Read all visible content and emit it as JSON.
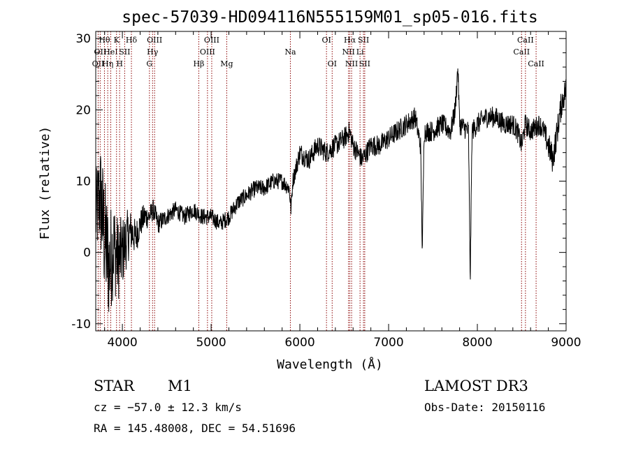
{
  "chart_data": {
    "type": "line",
    "title": "spec-57039-HD094116N555159M01_sp05-016.fits",
    "xlabel": "Wavelength (Å)",
    "ylabel": "Flux (relative)",
    "xlim": [
      3700,
      9000
    ],
    "ylim": [
      -11,
      31
    ],
    "xticks": [
      4000,
      5000,
      6000,
      7000,
      8000,
      9000
    ],
    "yticks": [
      -10,
      0,
      10,
      20,
      30
    ],
    "grid": false,
    "line_color": "#000000",
    "marker_color": "#8b0000",
    "spectrum_anchors": {
      "x": [
        3700,
        3750,
        3800,
        3850,
        3900,
        3950,
        4000,
        4050,
        4100,
        4150,
        4200,
        4250,
        4300,
        4350,
        4400,
        4500,
        4600,
        4700,
        4800,
        4900,
        5000,
        5100,
        5200,
        5300,
        5400,
        5500,
        5600,
        5700,
        5800,
        5880,
        5900,
        5920,
        6000,
        6100,
        6200,
        6300,
        6400,
        6500,
        6560,
        6600,
        6700,
        6800,
        6900,
        7000,
        7100,
        7200,
        7300,
        7360,
        7380,
        7400,
        7500,
        7600,
        7700,
        7750,
        7780,
        7800,
        7900,
        7920,
        7940,
        8000,
        8100,
        8200,
        8300,
        8400,
        8450,
        8500,
        8540,
        8600,
        8700,
        8750,
        8800,
        8850,
        8900,
        8950,
        9000
      ],
      "y": [
        5,
        8,
        2,
        -2,
        1,
        -1,
        0,
        2,
        3,
        2,
        4,
        5,
        5,
        6,
        4,
        5,
        6,
        5,
        6,
        5,
        5,
        4,
        5,
        7,
        8,
        9,
        9,
        10,
        10,
        9,
        6,
        10,
        14,
        13,
        15,
        14,
        15,
        16,
        17,
        15,
        13,
        15,
        15,
        16,
        17,
        18,
        19,
        15,
        0,
        17,
        17,
        18,
        17,
        20,
        26,
        18,
        17,
        -4,
        17,
        18,
        19,
        19,
        18,
        18,
        17,
        15,
        18,
        17,
        18,
        17,
        15,
        13,
        17,
        21,
        23
      ],
      "noise_amplitude": [
        6,
        8,
        9,
        8,
        7,
        6,
        5,
        4,
        3,
        2.5,
        2,
        2,
        1.5,
        1.5,
        1.5,
        1.2,
        1.2,
        1.2,
        1.2,
        1.2,
        1.2,
        1.2,
        1.2,
        1.2,
        1.2,
        1.2,
        1.2,
        1.2,
        1.2,
        1.2,
        1.2,
        1.2,
        1.5,
        1.5,
        1.5,
        1.5,
        1.5,
        1.5,
        1.5,
        1.5,
        1.5,
        1.5,
        1.5,
        1.5,
        1.5,
        1.5,
        1.5,
        1.5,
        1.5,
        1.5,
        1.5,
        1.5,
        1.5,
        1.5,
        1.5,
        1.5,
        1.5,
        1.5,
        1.5,
        1.5,
        1.5,
        1.5,
        1.5,
        1.5,
        1.5,
        1.5,
        1.5,
        1.5,
        1.5,
        1.5,
        2,
        2,
        2,
        2,
        2
      ]
    },
    "line_markers": [
      {
        "wave": 3727,
        "label": "OII",
        "row": 2
      },
      {
        "wave": 3750,
        "label": "OII",
        "row": 1
      },
      {
        "wave": 3798,
        "label": "Hθ",
        "row": 0
      },
      {
        "wave": 3835,
        "label": "Hη",
        "row": 2
      },
      {
        "wave": 3869,
        "label": "HeI",
        "row": 1
      },
      {
        "wave": 3934,
        "label": "K",
        "row": 0
      },
      {
        "wave": 3969,
        "label": "H",
        "row": 2
      },
      {
        "wave": 4026,
        "label": "SII",
        "row": 1
      },
      {
        "wave": 4102,
        "label": "Hδ",
        "row": 0
      },
      {
        "wave": 4305,
        "label": "G",
        "row": 2
      },
      {
        "wave": 4340,
        "label": "Hγ",
        "row": 1
      },
      {
        "wave": 4363,
        "label": "OIII",
        "row": 0
      },
      {
        "wave": 4861,
        "label": "Hβ",
        "row": 2
      },
      {
        "wave": 4959,
        "label": "OIII",
        "row": 1
      },
      {
        "wave": 5007,
        "label": "OIII",
        "row": 0
      },
      {
        "wave": 5176,
        "label": "Mg",
        "row": 2
      },
      {
        "wave": 5893,
        "label": "Na",
        "row": 1
      },
      {
        "wave": 6300,
        "label": "OI",
        "row": 0
      },
      {
        "wave": 6364,
        "label": "OI",
        "row": 2
      },
      {
        "wave": 6548,
        "label": "NII",
        "row": 1
      },
      {
        "wave": 6563,
        "label": "Hα",
        "row": 0
      },
      {
        "wave": 6583,
        "label": "NII",
        "row": 2
      },
      {
        "wave": 6678,
        "label": "Li",
        "row": 1
      },
      {
        "wave": 6717,
        "label": "SII",
        "row": 0
      },
      {
        "wave": 6731,
        "label": "SII",
        "row": 2
      },
      {
        "wave": 8498,
        "label": "CaII",
        "row": 1
      },
      {
        "wave": 8542,
        "label": "CaII",
        "row": 0
      },
      {
        "wave": 8662,
        "label": "CaII",
        "row": 2
      }
    ]
  },
  "info": {
    "object_type": "STAR",
    "subclass": "M1",
    "cz": "cz = −57.0 ± 12.3 km/s",
    "ra_dec": "RA = 145.48008, DEC =  54.51696",
    "survey": "LAMOST DR3",
    "obs_date": "Obs-Date: 20150116"
  }
}
